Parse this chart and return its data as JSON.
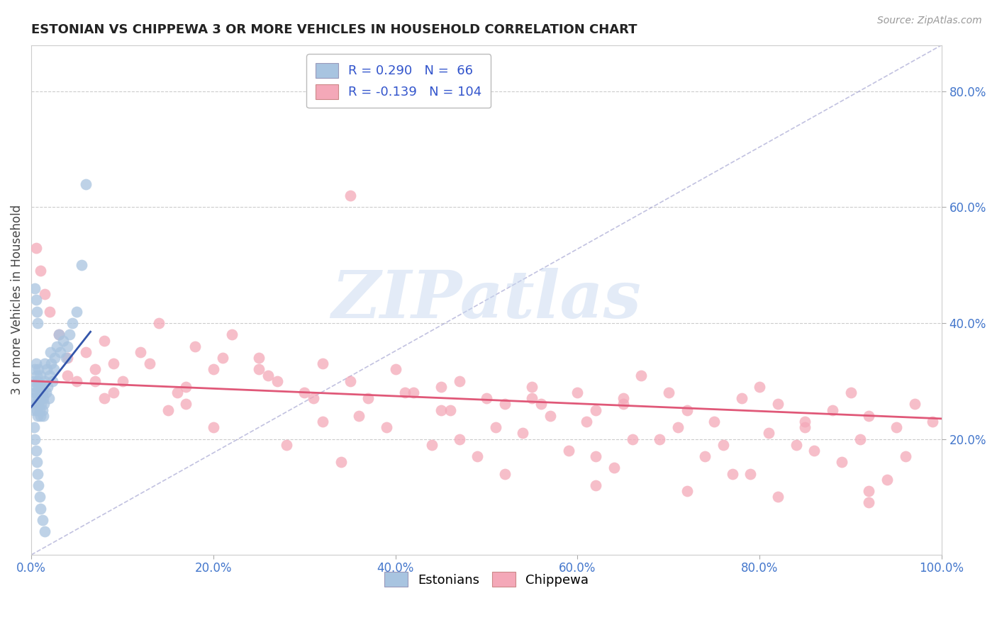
{
  "title": "ESTONIAN VS CHIPPEWA 3 OR MORE VEHICLES IN HOUSEHOLD CORRELATION CHART",
  "source": "Source: ZipAtlas.com",
  "ylabel": "3 or more Vehicles in Household",
  "xlim": [
    0.0,
    1.0
  ],
  "ylim": [
    0.0,
    0.88
  ],
  "xticklabels": [
    "0.0%",
    "20.0%",
    "40.0%",
    "60.0%",
    "80.0%",
    "100.0%"
  ],
  "yticklabels_right": [
    "20.0%",
    "40.0%",
    "60.0%",
    "80.0%"
  ],
  "yticks_right": [
    0.2,
    0.4,
    0.6,
    0.8
  ],
  "legend_r1": "0.290",
  "legend_n1": "66",
  "legend_r2": "-0.139",
  "legend_n2": "104",
  "blue_fill": "#A8C4E0",
  "pink_fill": "#F4A8B8",
  "blue_line_color": "#3355AA",
  "pink_line_color": "#E05878",
  "legend_text_color": "#3355CC",
  "title_color": "#222222",
  "axis_tick_color": "#4477CC",
  "watermark_color": "#C8D8F0",
  "grid_color": "#CCCCCC",
  "ref_line_color": "#9999CC",
  "blue_x": [
    0.002,
    0.003,
    0.003,
    0.004,
    0.004,
    0.005,
    0.005,
    0.005,
    0.006,
    0.006,
    0.006,
    0.007,
    0.007,
    0.007,
    0.008,
    0.008,
    0.008,
    0.009,
    0.009,
    0.01,
    0.01,
    0.01,
    0.011,
    0.011,
    0.012,
    0.012,
    0.013,
    0.013,
    0.014,
    0.015,
    0.015,
    0.016,
    0.017,
    0.018,
    0.019,
    0.02,
    0.021,
    0.022,
    0.023,
    0.025,
    0.026,
    0.028,
    0.03,
    0.032,
    0.035,
    0.038,
    0.04,
    0.042,
    0.045,
    0.05,
    0.003,
    0.004,
    0.005,
    0.006,
    0.007,
    0.008,
    0.009,
    0.01,
    0.012,
    0.015,
    0.004,
    0.005,
    0.006,
    0.007,
    0.055,
    0.06
  ],
  "blue_y": [
    0.27,
    0.3,
    0.25,
    0.32,
    0.28,
    0.26,
    0.29,
    0.33,
    0.25,
    0.28,
    0.31,
    0.24,
    0.27,
    0.3,
    0.26,
    0.29,
    0.32,
    0.25,
    0.28,
    0.24,
    0.27,
    0.31,
    0.26,
    0.29,
    0.25,
    0.28,
    0.24,
    0.27,
    0.26,
    0.3,
    0.33,
    0.28,
    0.32,
    0.29,
    0.27,
    0.31,
    0.35,
    0.33,
    0.3,
    0.32,
    0.34,
    0.36,
    0.38,
    0.35,
    0.37,
    0.34,
    0.36,
    0.38,
    0.4,
    0.42,
    0.22,
    0.2,
    0.18,
    0.16,
    0.14,
    0.12,
    0.1,
    0.08,
    0.06,
    0.04,
    0.46,
    0.44,
    0.42,
    0.4,
    0.5,
    0.64
  ],
  "pink_x": [
    0.005,
    0.01,
    0.015,
    0.02,
    0.03,
    0.04,
    0.05,
    0.06,
    0.07,
    0.08,
    0.09,
    0.1,
    0.12,
    0.14,
    0.16,
    0.18,
    0.2,
    0.22,
    0.25,
    0.27,
    0.3,
    0.32,
    0.35,
    0.37,
    0.4,
    0.42,
    0.45,
    0.47,
    0.5,
    0.52,
    0.55,
    0.57,
    0.6,
    0.62,
    0.65,
    0.67,
    0.7,
    0.72,
    0.75,
    0.78,
    0.8,
    0.82,
    0.85,
    0.88,
    0.9,
    0.92,
    0.95,
    0.97,
    0.99,
    0.08,
    0.13,
    0.17,
    0.21,
    0.26,
    0.31,
    0.36,
    0.41,
    0.46,
    0.51,
    0.56,
    0.61,
    0.66,
    0.71,
    0.76,
    0.81,
    0.86,
    0.91,
    0.96,
    0.04,
    0.09,
    0.15,
    0.2,
    0.28,
    0.34,
    0.39,
    0.44,
    0.49,
    0.54,
    0.59,
    0.64,
    0.69,
    0.74,
    0.79,
    0.84,
    0.89,
    0.94,
    0.52,
    0.62,
    0.72,
    0.82,
    0.92,
    0.17,
    0.32,
    0.47,
    0.62,
    0.77,
    0.92,
    0.07,
    0.25,
    0.45,
    0.65,
    0.85,
    0.35,
    0.55
  ],
  "pink_y": [
    0.53,
    0.49,
    0.45,
    0.42,
    0.38,
    0.34,
    0.3,
    0.35,
    0.32,
    0.37,
    0.33,
    0.3,
    0.35,
    0.4,
    0.28,
    0.36,
    0.32,
    0.38,
    0.34,
    0.3,
    0.28,
    0.33,
    0.3,
    0.27,
    0.32,
    0.28,
    0.25,
    0.3,
    0.27,
    0.26,
    0.29,
    0.24,
    0.28,
    0.25,
    0.27,
    0.31,
    0.28,
    0.25,
    0.23,
    0.27,
    0.29,
    0.26,
    0.22,
    0.25,
    0.28,
    0.24,
    0.22,
    0.26,
    0.23,
    0.27,
    0.33,
    0.29,
    0.34,
    0.31,
    0.27,
    0.24,
    0.28,
    0.25,
    0.22,
    0.26,
    0.23,
    0.2,
    0.22,
    0.19,
    0.21,
    0.18,
    0.2,
    0.17,
    0.31,
    0.28,
    0.25,
    0.22,
    0.19,
    0.16,
    0.22,
    0.19,
    0.17,
    0.21,
    0.18,
    0.15,
    0.2,
    0.17,
    0.14,
    0.19,
    0.16,
    0.13,
    0.14,
    0.12,
    0.11,
    0.1,
    0.09,
    0.26,
    0.23,
    0.2,
    0.17,
    0.14,
    0.11,
    0.3,
    0.32,
    0.29,
    0.26,
    0.23,
    0.62,
    0.27
  ],
  "blue_trend_x": [
    0.0,
    0.065
  ],
  "blue_trend_y": [
    0.255,
    0.385
  ],
  "pink_trend_x": [
    0.0,
    1.0
  ],
  "pink_trend_y": [
    0.3,
    0.235
  ]
}
